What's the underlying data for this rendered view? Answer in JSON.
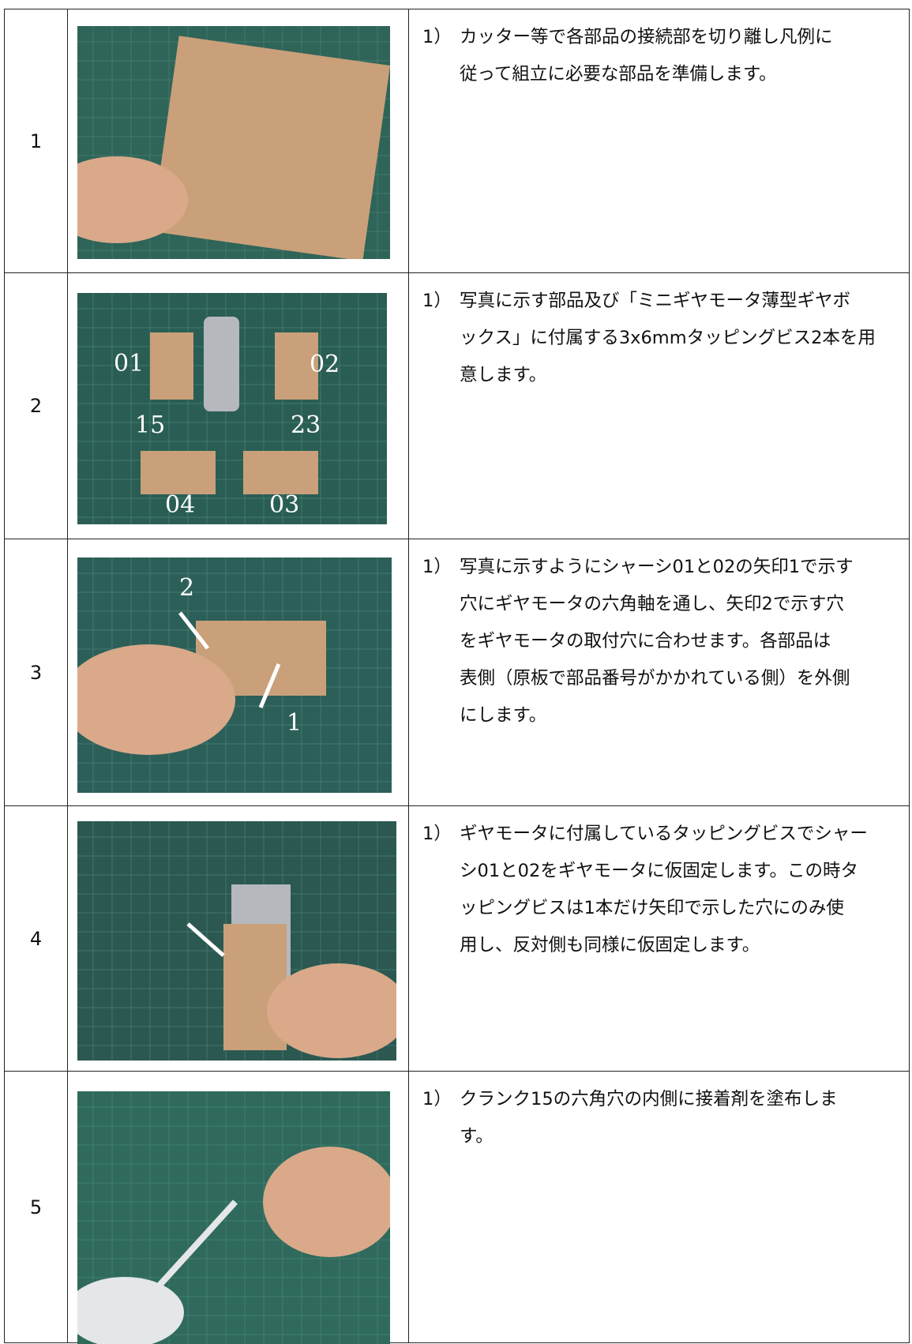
{
  "steps": [
    {
      "number": "1",
      "paragraphs": [
        {
          "marker": "1）",
          "lines": [
            "カッター等で各部品の接続部を切り離し凡例に",
            "従って組立に必要な部品を準備します。"
          ]
        }
      ],
      "photo_labels": []
    },
    {
      "number": "2",
      "paragraphs": [
        {
          "marker": "1）",
          "lines": [
            "写真に示す部品及び「ミニギヤモータ薄型ギヤボ",
            "ックス」に付属する3x6mmタッピングビス2本を用",
            "意します。"
          ]
        }
      ],
      "photo_labels": [
        "01",
        "02",
        "15",
        "23",
        "04",
        "03"
      ]
    },
    {
      "number": "3",
      "paragraphs": [
        {
          "marker": "1）",
          "lines": [
            "写真に示すようにシャーシ01と02の矢印1で示す",
            "穴にギヤモータの六角軸を通し、矢印2で示す穴",
            "をギヤモータの取付穴に合わせます。各部品は",
            "表側（原板で部品番号がかかれている側）を外側",
            "にします。"
          ]
        }
      ],
      "photo_labels": [
        "2",
        "1"
      ]
    },
    {
      "number": "4",
      "paragraphs": [
        {
          "marker": "1）",
          "lines": [
            "ギヤモータに付属しているタッピングビスでシャー",
            "シ01と02をギヤモータに仮固定します。この時タ",
            "ッピングビスは1本だけ矢印で示した穴にのみ使",
            "用し、反対側も同様に仮固定します。"
          ]
        }
      ],
      "photo_labels": []
    },
    {
      "number": "5",
      "paragraphs": [
        {
          "marker": "1）",
          "lines": [
            "クランク15の六角穴の内側に接着剤を塗布しま",
            "す。"
          ]
        }
      ],
      "photo_labels": []
    }
  ]
}
